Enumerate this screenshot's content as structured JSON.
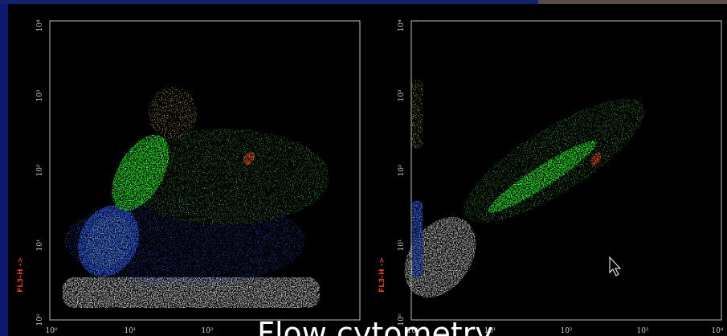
{
  "left_plot": {
    "y_axis_label": "FL3-H ->",
    "y_ticks": [
      "10⁰",
      "10¹",
      "10²",
      "10³",
      "10⁴"
    ],
    "x_ticks": [
      "10⁰",
      "10¹",
      "10²"
    ]
  },
  "right_plot": {
    "y_axis_label": "FL3-H ->",
    "y_ticks": [
      "10⁰",
      "10¹",
      "10²",
      "10³",
      "10⁴"
    ],
    "x_ticks": [
      "10⁰",
      "10¹",
      "10²",
      "10³",
      "10⁴"
    ]
  },
  "caption": "Flow cytometry"
}
